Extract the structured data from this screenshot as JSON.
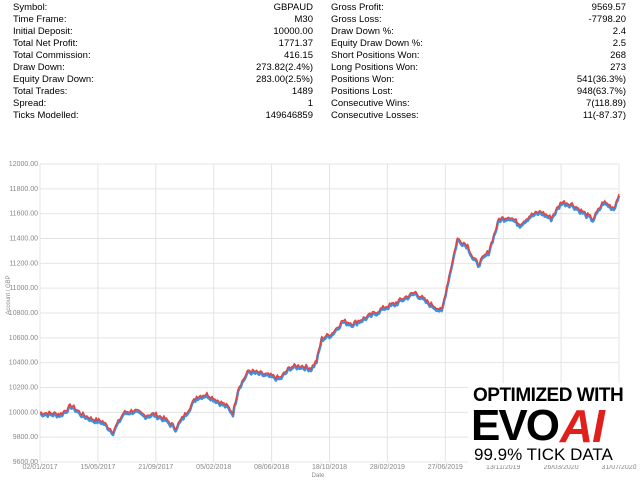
{
  "stats": {
    "left": [
      {
        "label": "Symbol:",
        "value": "GBPAUD"
      },
      {
        "label": "Time Frame:",
        "value": "M30"
      },
      {
        "label": "Initial Deposit:",
        "value": "10000.00"
      },
      {
        "label": "Total Net Profit:",
        "value": "1771.37"
      },
      {
        "label": "Total Commission:",
        "value": "416.15"
      },
      {
        "label": "Draw Down:",
        "value": "273.82(2.4%)"
      },
      {
        "label": "Equity Draw Down:",
        "value": "283.00(2.5%)"
      },
      {
        "label": "Total Trades:",
        "value": "1489"
      },
      {
        "label": "Spread:",
        "value": "1"
      },
      {
        "label": "Ticks Modelled:",
        "value": "149646859"
      }
    ],
    "right": [
      {
        "label": "Gross Profit:",
        "value": "9569.57"
      },
      {
        "label": "Gross Loss:",
        "value": "-7798.20"
      },
      {
        "label": "Draw Down %:",
        "value": "2.4"
      },
      {
        "label": "Equity Draw Down %:",
        "value": "2.5"
      },
      {
        "label": "Short Positions Won:",
        "value": "268"
      },
      {
        "label": "Long Positions Won:",
        "value": "273"
      },
      {
        "label": "Positions Won:",
        "value": "541(36.3%)"
      },
      {
        "label": "Positions Lost:",
        "value": "948(63.7%)"
      },
      {
        "label": "Consecutive Wins:",
        "value": "7(118.89)"
      },
      {
        "label": "Consecutive Losses:",
        "value": "11(-87.37)"
      }
    ]
  },
  "chart_data": {
    "type": "line",
    "title": "",
    "xlabel": "Date",
    "ylabel": "Account / GBP",
    "ylim": [
      9600,
      12000
    ],
    "y_ticks": [
      "9600.00",
      "9800.00",
      "10000.00",
      "10200.00",
      "10400.00",
      "10600.00",
      "10800.00",
      "11000.00",
      "11200.00",
      "11400.00",
      "11600.00",
      "11800.00",
      "12000.00"
    ],
    "x_ticks": [
      "02/01/2017",
      "15/05/2017",
      "21/09/2017",
      "05/02/2018",
      "08/06/2018",
      "18/10/2018",
      "28/02/2019",
      "27/06/2019",
      "13/11/2019",
      "26/03/2020",
      "31/07/2020"
    ],
    "grid": true,
    "colors": {
      "balance": "#e8423c",
      "equity": "#3f8fe0"
    },
    "series": [
      {
        "values": [
          [
            0,
            10000
          ],
          [
            2,
            9990
          ],
          [
            3,
            10060
          ],
          [
            4,
            9990
          ],
          [
            5,
            9950
          ],
          [
            6,
            9930
          ],
          [
            7,
            9850
          ],
          [
            8,
            10000
          ],
          [
            9,
            10020
          ],
          [
            10,
            9980
          ],
          [
            11,
            9990
          ],
          [
            12,
            9950
          ],
          [
            13,
            9880
          ],
          [
            14,
            10000
          ],
          [
            15,
            10130
          ],
          [
            16,
            10150
          ],
          [
            17,
            10100
          ],
          [
            18,
            10050
          ],
          [
            18.5,
            10000
          ],
          [
            19,
            10200
          ],
          [
            20,
            10340
          ],
          [
            21,
            10320
          ],
          [
            22,
            10300
          ],
          [
            23,
            10280
          ],
          [
            24,
            10370
          ],
          [
            25,
            10380
          ],
          [
            26,
            10360
          ],
          [
            26.5,
            10420
          ],
          [
            27,
            10600
          ],
          [
            28,
            10640
          ],
          [
            29,
            10740
          ],
          [
            30,
            10720
          ],
          [
            31,
            10760
          ],
          [
            32,
            10800
          ],
          [
            33,
            10850
          ],
          [
            34,
            10880
          ],
          [
            35,
            10930
          ],
          [
            36,
            10970
          ],
          [
            37,
            10900
          ],
          [
            38,
            10850
          ],
          [
            38.5,
            10820
          ],
          [
            39,
            11020
          ],
          [
            40,
            11400
          ],
          [
            41,
            11350
          ],
          [
            41.5,
            11250
          ],
          [
            42,
            11200
          ],
          [
            43,
            11300
          ],
          [
            44,
            11560
          ],
          [
            45,
            11580
          ],
          [
            46,
            11520
          ],
          [
            47,
            11590
          ],
          [
            48,
            11620
          ],
          [
            49,
            11570
          ],
          [
            50,
            11700
          ],
          [
            51,
            11680
          ],
          [
            52,
            11620
          ],
          [
            53,
            11560
          ],
          [
            54,
            11700
          ],
          [
            55,
            11650
          ],
          [
            55.5,
            11760
          ]
        ]
      }
    ]
  },
  "logo": {
    "line1": "OPTIMIZED WITH",
    "evo": "EVO",
    "ai": "AI",
    "line3": "99.9% TICK DATA"
  }
}
